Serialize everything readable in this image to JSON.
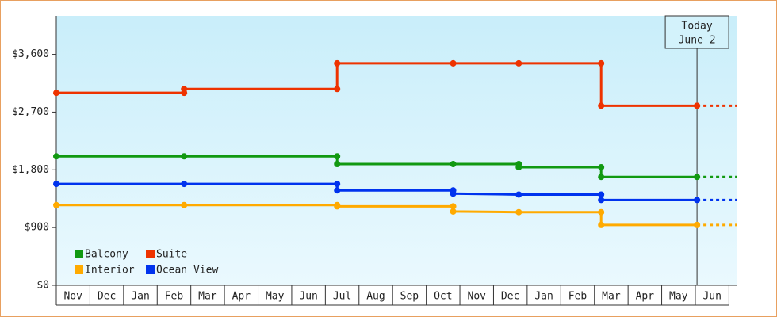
{
  "chart_data": {
    "type": "step",
    "categories": [
      "Nov",
      "Dec",
      "Jan",
      "Feb",
      "Mar",
      "Apr",
      "May",
      "Jun",
      "Jul",
      "Aug",
      "Sep",
      "Oct",
      "Nov",
      "Dec",
      "Jan",
      "Feb",
      "Mar",
      "Apr",
      "May",
      "Jun"
    ],
    "xlim": [
      0,
      20.25
    ],
    "ylim": [
      0,
      4200
    ],
    "yticks": [
      {
        "value": 0,
        "label": "$0"
      },
      {
        "value": 900,
        "label": "$900"
      },
      {
        "value": 1800,
        "label": "$1,800"
      },
      {
        "value": 2700,
        "label": "$2,700"
      },
      {
        "value": 3600,
        "label": "$3,600"
      }
    ],
    "legend": "lower left",
    "annotation": {
      "lines": [
        "Today",
        "June 2"
      ],
      "x": 19.05
    },
    "series": [
      {
        "name": "Balcony",
        "color": "#119911",
        "x": [
          0,
          3.8,
          8.35,
          8.35,
          11.8,
          13.75,
          13.75,
          16.2,
          16.2,
          19.05
        ],
        "values": [
          2010,
          2010,
          2010,
          1890,
          1890,
          1890,
          1840,
          1840,
          1690,
          1690
        ]
      },
      {
        "name": "Suite",
        "color": "#ee3300",
        "x": [
          0,
          3.8,
          3.8,
          8.35,
          8.35,
          11.8,
          13.75,
          16.2,
          16.2,
          19.05
        ],
        "values": [
          3000,
          3000,
          3060,
          3060,
          3460,
          3460,
          3460,
          3460,
          2800,
          2800
        ]
      },
      {
        "name": "Interior",
        "color": "#ffaa00",
        "x": [
          0,
          3.8,
          8.35,
          8.35,
          11.8,
          11.8,
          13.75,
          16.2,
          16.2,
          19.05
        ],
        "values": [
          1250,
          1250,
          1250,
          1230,
          1230,
          1150,
          1140,
          1140,
          940,
          940
        ]
      },
      {
        "name": "Ocean View",
        "color": "#0033ee",
        "x": [
          0,
          3.8,
          8.35,
          8.35,
          11.8,
          11.8,
          13.75,
          16.2,
          16.2,
          19.05
        ],
        "values": [
          1580,
          1580,
          1580,
          1480,
          1480,
          1430,
          1415,
          1415,
          1330,
          1330
        ]
      }
    ]
  }
}
